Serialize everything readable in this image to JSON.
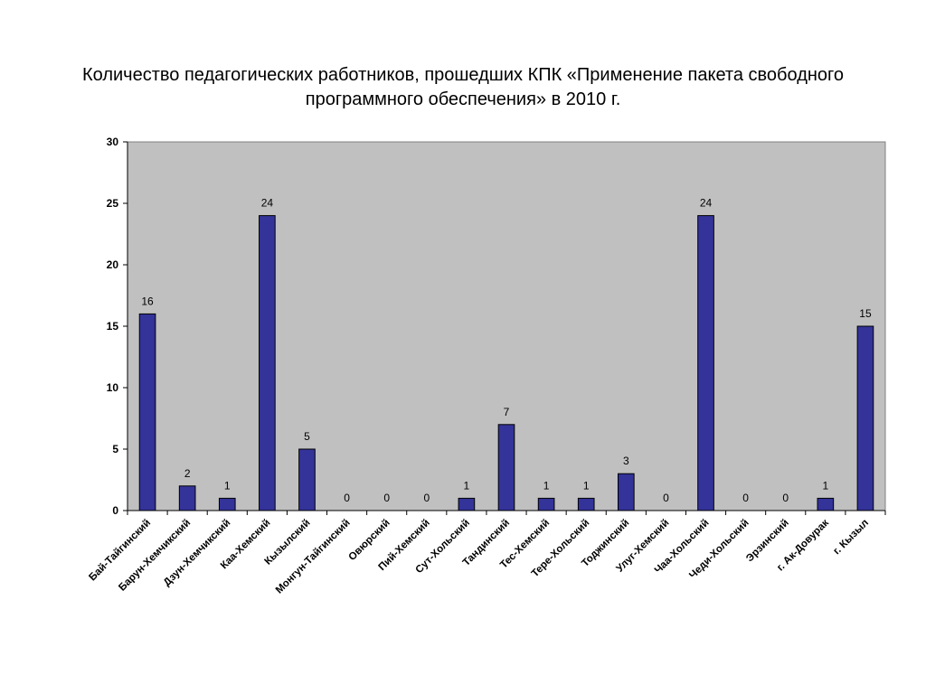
{
  "chart_data": {
    "type": "bar",
    "title": "Количество педагогических работников, прошедших КПК «Применение пакета свободного программного обеспечения» в 2010 г.",
    "categories": [
      "Бай-Тайгинский",
      "Барун-Хемчикский",
      "Дзун-Хемчикский",
      "Каа-Хемский",
      "Кызылский",
      "Монгун-Тайгинский",
      "Овюрский",
      "Пий-Хемский",
      "Сут-Хольский",
      "Тандинский",
      "Тес-Хемский",
      "Тере-Хольский",
      "Тоджинский",
      "Улуг-Хемский",
      "Чаа-Хольский",
      "Чеди-Хольский",
      "Эрзинский",
      "г. Ак-Довурак",
      "г. Кызыл"
    ],
    "values": [
      16,
      2,
      1,
      24,
      5,
      0,
      0,
      0,
      1,
      7,
      1,
      1,
      3,
      0,
      24,
      0,
      0,
      1,
      15
    ],
    "ylim": [
      0,
      30
    ],
    "yticks": [
      0,
      5,
      10,
      15,
      20,
      25,
      30
    ],
    "xlabel": "",
    "ylabel": "",
    "grid": false,
    "legend": "none",
    "colors": {
      "bar": "#333399",
      "plot_background": "#c0c0c0"
    }
  }
}
